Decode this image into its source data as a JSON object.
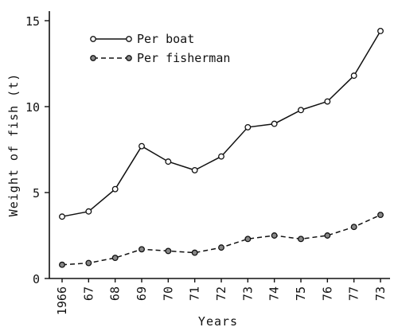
{
  "chart_data": {
    "type": "line",
    "title": "",
    "xlabel": "Years",
    "ylabel": "Weight of fish (t)",
    "categories": [
      "1966",
      "67",
      "68",
      "69",
      "70",
      "71",
      "72",
      "73",
      "74",
      "75",
      "76",
      "77",
      "73"
    ],
    "ylim": [
      0,
      15
    ],
    "yticks": [
      0,
      5,
      10,
      15
    ],
    "grid": false,
    "legend_position": "top-left",
    "series": [
      {
        "name": "Per boat",
        "style": "solid",
        "values": [
          3.6,
          3.9,
          5.2,
          7.7,
          6.8,
          6.3,
          7.1,
          8.8,
          9.0,
          9.8,
          10.3,
          11.8,
          14.4
        ]
      },
      {
        "name": "Per fisherman",
        "style": "dashed",
        "values": [
          0.8,
          0.9,
          1.2,
          1.7,
          1.6,
          1.5,
          1.8,
          2.3,
          2.5,
          2.3,
          2.5,
          3.0,
          3.7
        ]
      }
    ]
  }
}
